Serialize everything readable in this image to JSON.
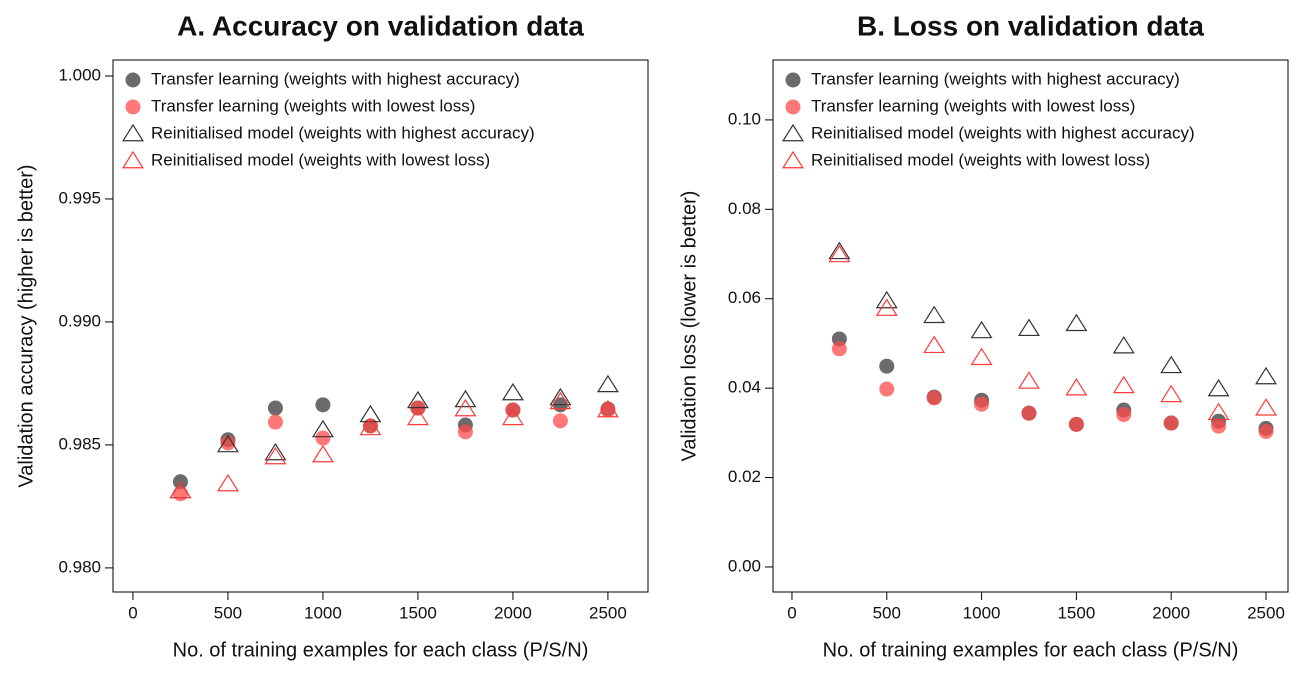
{
  "chart_data": [
    {
      "type": "scatter",
      "title": "A. Accuracy on validation data",
      "x_label": "No. of training examples for each class (P/S/N)",
      "y_label": "Validation accuracy (higher is better)",
      "x": [
        250,
        500,
        750,
        1000,
        1250,
        1500,
        1750,
        2000,
        2250,
        2500
      ],
      "xlim": [
        -105,
        2711
      ],
      "xticks": [
        0,
        500,
        1000,
        1500,
        2000,
        2500
      ],
      "ylim": [
        0.97902,
        1.00065
      ],
      "yticks": [
        {
          "value": 0.98,
          "label": "0.980"
        },
        0.985,
        {
          "value": 0.99,
          "label": "0.990"
        },
        0.995,
        {
          "value": 1,
          "label": "1.000"
        }
      ],
      "legend": "top-left",
      "series": [
        {
          "name": "Transfer learning (weights with highest accuracy)",
          "color": "#3a3a3a",
          "marker": "circle",
          "values": [
            0.9835,
            0.98521,
            0.9865,
            0.98663,
            0.98577,
            0.9865,
            0.98581,
            0.98642,
            0.98663,
            0.98646
          ]
        },
        {
          "name": "Transfer learning (weights with lowest loss)",
          "color": "#ff4a4a",
          "marker": "circle",
          "values": [
            0.98301,
            0.98508,
            0.98593,
            0.98528,
            0.98577,
            0.9865,
            0.98553,
            0.98642,
            0.98598,
            0.98642
          ]
        },
        {
          "name": "Reinitialised model (weights with highest accuracy)",
          "color": "#333333",
          "marker": "triangle",
          "values": [
            0.98313,
            0.985,
            0.98467,
            0.98561,
            0.98622,
            0.98679,
            0.98683,
            0.98711,
            0.98691,
            0.98744
          ]
        },
        {
          "name": "Reinitialised model (weights with lowest loss)",
          "color": "#ff3a3a",
          "marker": "triangle",
          "values": [
            0.98313,
            0.98341,
            0.98451,
            0.98459,
            0.98569,
            0.9861,
            0.98646,
            0.9861,
            0.98675,
            0.98642
          ]
        }
      ]
    },
    {
      "type": "scatter",
      "title": "B. Loss on validation data",
      "x_label": "No. of training examples for each class (P/S/N)",
      "y_label": "Validation loss (lower is better)",
      "x": [
        250,
        500,
        750,
        1000,
        1250,
        1500,
        1750,
        2000,
        2250,
        2500
      ],
      "xlim": [
        -100,
        2616
      ],
      "xticks": [
        0,
        500,
        1000,
        1500,
        2000,
        2500
      ],
      "ylim": [
        -0.0056,
        0.1134
      ],
      "yticks": [
        {
          "value": 0,
          "label": "0.00"
        },
        0.02,
        0.04,
        0.06,
        0.08,
        {
          "value": 0.1,
          "label": "0.10"
        }
      ],
      "legend": "top-left",
      "series": [
        {
          "name": "Transfer learning (weights with highest accuracy)",
          "color": "#3a3a3a",
          "marker": "circle",
          "values": [
            0.051,
            0.0449,
            0.038,
            0.0373,
            0.0344,
            0.0319,
            0.0351,
            0.0322,
            0.0326,
            0.031
          ]
        },
        {
          "name": "Transfer learning (weights with lowest loss)",
          "color": "#ff4a4a",
          "marker": "circle",
          "values": [
            0.0488,
            0.0398,
            0.0378,
            0.0364,
            0.0344,
            0.0319,
            0.0341,
            0.0322,
            0.0315,
            0.0303
          ]
        },
        {
          "name": "Reinitialised model (weights with highest accuracy)",
          "color": "#333333",
          "marker": "triangle",
          "values": [
            0.0705,
            0.0595,
            0.0562,
            0.0528,
            0.0533,
            0.0544,
            0.0494,
            0.045,
            0.0398,
            0.0425
          ]
        },
        {
          "name": "Reinitialised model (weights with lowest loss)",
          "color": "#ff3a3a",
          "marker": "triangle",
          "values": [
            0.0698,
            0.0578,
            0.0495,
            0.0468,
            0.0415,
            0.04,
            0.0405,
            0.0385,
            0.0345,
            0.0355
          ]
        }
      ]
    }
  ]
}
